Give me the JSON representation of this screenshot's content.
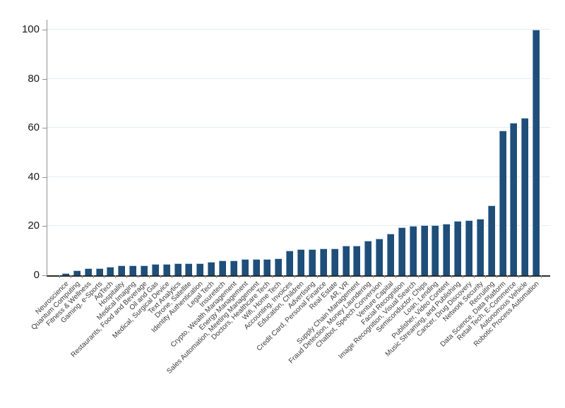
{
  "chart_data": {
    "type": "bar",
    "title": "",
    "xlabel": "",
    "ylabel": "",
    "categories": [
      "Neuroscience",
      "Quantum Computing",
      "Fitness & Wellness",
      "Gaming, e-Sports",
      "AgTech",
      "Hospitality",
      "Medical Imaging",
      "Restaurants, Food and Beverage",
      "Oil and Gas",
      "Medical, Surgical Device",
      "Text Analytics",
      "Drone, Satellite",
      "Identity Authentication",
      "Legal Tech",
      "Insuretech",
      "Crypto, Wealth Management",
      "Energy Management",
      "Sales Automation, Meeting Management",
      "Doctors, Healthcare Tech",
      "Wifi, Home Tech",
      "Accounting, Invoices",
      "Education, Children",
      "Advertising",
      "Credit Card, Personal Finance",
      "Real Estate",
      "AR, VR",
      "Supply Chain Management",
      "Fraud Detection, Money Laundering",
      "Chatbot, Speech Conversion",
      "Venture Capital",
      "Facial Recognition",
      "Image Recognition, Visual Search",
      "Semiconductor, Chips",
      "Loan, Lending",
      "Publisher, Video Content",
      "Music Streaming, and Publishing",
      "Cancer, Drug Discovery",
      "Network Security",
      "Recruiting",
      "Data Science, Data Platform",
      "Retail Tech, E-Commerce",
      "Autonomous Vehicle",
      "Robotic Process Automation"
    ],
    "values": [
      1,
      2,
      3,
      3,
      3.5,
      4,
      4,
      4,
      4.5,
      4.5,
      5,
      5,
      5,
      5.5,
      6,
      6,
      6.5,
      6.5,
      6.5,
      7,
      10,
      10.5,
      10.5,
      11,
      11,
      12,
      12,
      14,
      15,
      17,
      19.5,
      20,
      20.5,
      20.5,
      21,
      22,
      22.5,
      23,
      28.5,
      59,
      62,
      64,
      100
    ],
    "ylim": [
      0,
      100
    ],
    "yticks": [
      0,
      20,
      40,
      60,
      80,
      100
    ],
    "grid": "horizontal",
    "legend": "none",
    "bar_color": "#1f4e79",
    "bar_edge_color": "#b7cfe6",
    "gridline_color": "#e4ecf4",
    "y_axis_color": "#909090",
    "x_axis_color": "#2b2b2b",
    "y_tick_label_color": "#1a1a1a",
    "x_tick_label_color": "#3a3a3a"
  }
}
